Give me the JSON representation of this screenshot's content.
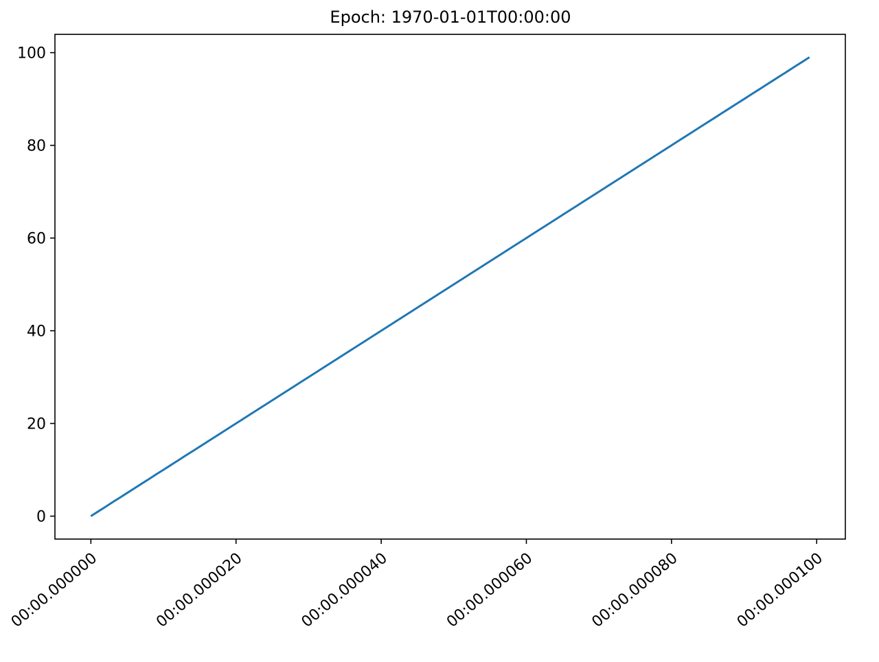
{
  "chart_data": {
    "type": "line",
    "title": "Epoch: 1970-01-01T00:00:00",
    "xlabel": "",
    "ylabel": "",
    "x_unit": "microseconds after 1970-01-01T00:00:00",
    "xlim": [
      "1970-01-01T00:00:00.000000 - 4.95us",
      "1970-01-01T00:00:00.000099 + 4.95us"
    ],
    "xlim_us": [
      -4.95,
      103.95
    ],
    "ylim": [
      -4.95,
      103.95
    ],
    "grid": false,
    "x_ticks": [
      0,
      20,
      40,
      60,
      80,
      100
    ],
    "x_tick_labels": [
      "00:00.000000",
      "00:00.000020",
      "00:00.000040",
      "00:00.000060",
      "00:00.000080",
      "00:00.000100"
    ],
    "y_ticks": [
      0,
      20,
      40,
      60,
      80,
      100
    ],
    "y_tick_labels": [
      "0",
      "20",
      "40",
      "60",
      "80",
      "100"
    ],
    "color": "#1f77b4",
    "x_us": [
      0,
      1,
      2,
      3,
      4,
      5,
      6,
      7,
      8,
      9,
      10,
      11,
      12,
      13,
      14,
      15,
      16,
      17,
      18,
      19,
      20,
      21,
      22,
      23,
      24,
      25,
      26,
      27,
      28,
      29,
      30,
      31,
      32,
      33,
      34,
      35,
      36,
      37,
      38,
      39,
      40,
      41,
      42,
      43,
      44,
      45,
      46,
      47,
      48,
      49,
      50,
      51,
      52,
      53,
      54,
      55,
      56,
      57,
      58,
      59,
      60,
      61,
      62,
      63,
      64,
      65,
      66,
      67,
      68,
      69,
      70,
      71,
      72,
      73,
      74,
      75,
      76,
      77,
      78,
      79,
      80,
      81,
      82,
      83,
      84,
      85,
      86,
      87,
      88,
      89,
      90,
      91,
      92,
      93,
      94,
      95,
      96,
      97,
      98,
      99
    ],
    "values": [
      0,
      1,
      2,
      3,
      4,
      5,
      6,
      7,
      8,
      9,
      10,
      11,
      12,
      13,
      14,
      15,
      16,
      17,
      18,
      19,
      20,
      21,
      22,
      23,
      24,
      25,
      26,
      27,
      28,
      29,
      30,
      31,
      32,
      33,
      34,
      35,
      36,
      37,
      38,
      39,
      40,
      41,
      42,
      43,
      44,
      45,
      46,
      47,
      48,
      49,
      50,
      51,
      52,
      53,
      54,
      55,
      56,
      57,
      58,
      59,
      60,
      61,
      62,
      63,
      64,
      65,
      66,
      67,
      68,
      69,
      70,
      71,
      72,
      73,
      74,
      75,
      76,
      77,
      78,
      79,
      80,
      81,
      82,
      83,
      84,
      85,
      86,
      87,
      88,
      89,
      90,
      91,
      92,
      93,
      94,
      95,
      96,
      97,
      98,
      99
    ]
  }
}
